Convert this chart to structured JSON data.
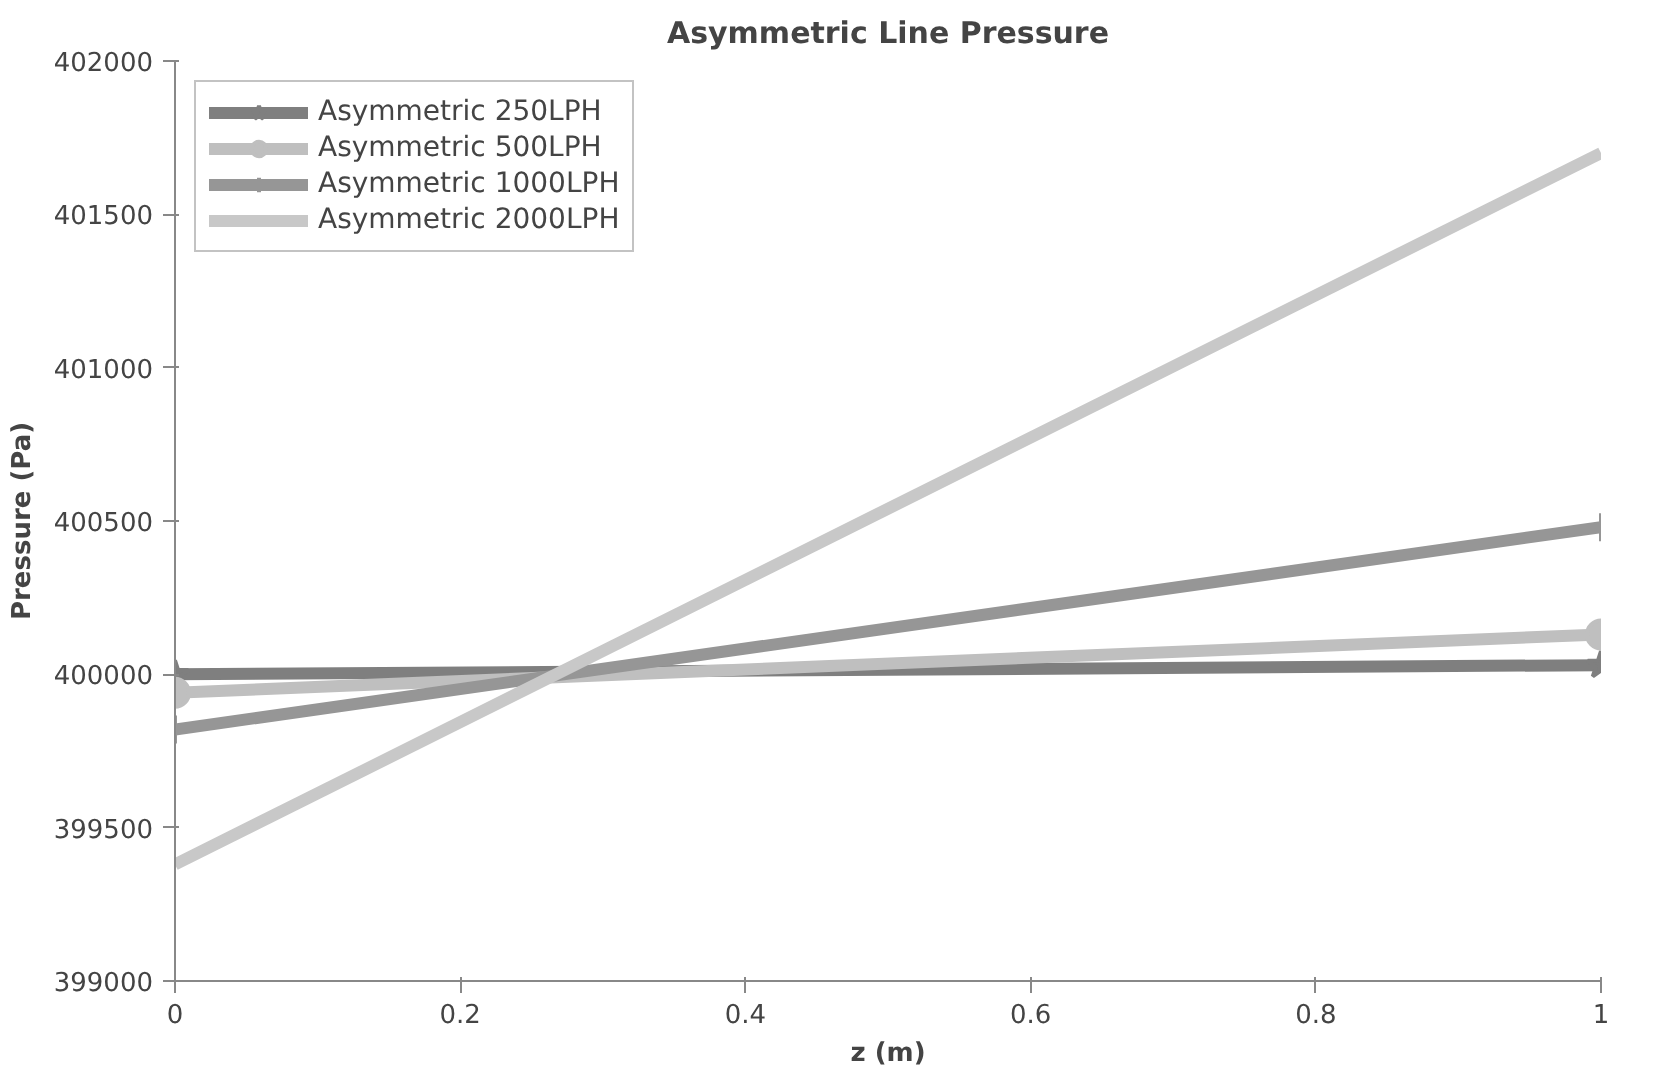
{
  "chart_data": {
    "type": "line",
    "title": "Asymmetric Line Pressure",
    "xlabel": "z (m)",
    "ylabel": "Pressure (Pa)",
    "x": [
      0,
      1
    ],
    "xlim": [
      0,
      1
    ],
    "xticks": [
      0,
      0.2,
      0.4,
      0.6,
      0.8,
      1
    ],
    "ylim": [
      399000,
      402000
    ],
    "yticks": [
      399000,
      399500,
      400000,
      400500,
      401000,
      401500,
      402000
    ],
    "grid": false,
    "legend": "top left",
    "series": [
      {
        "name": "Asymmetric 250LPH",
        "color": "#7f7f7f",
        "values": [
          400000,
          400030
        ],
        "marker": "star"
      },
      {
        "name": "Asymmetric 500LPH",
        "color": "#bfbfbf",
        "values": [
          399940,
          400130
        ],
        "marker": "circle"
      },
      {
        "name": "Asymmetric 1000LPH",
        "color": "#969696",
        "values": [
          399820,
          400480
        ],
        "marker": "cross"
      },
      {
        "name": "Asymmetric 2000LPH",
        "color": "#c8c8c8",
        "values": [
          399380,
          401700
        ],
        "marker": "none"
      }
    ]
  }
}
